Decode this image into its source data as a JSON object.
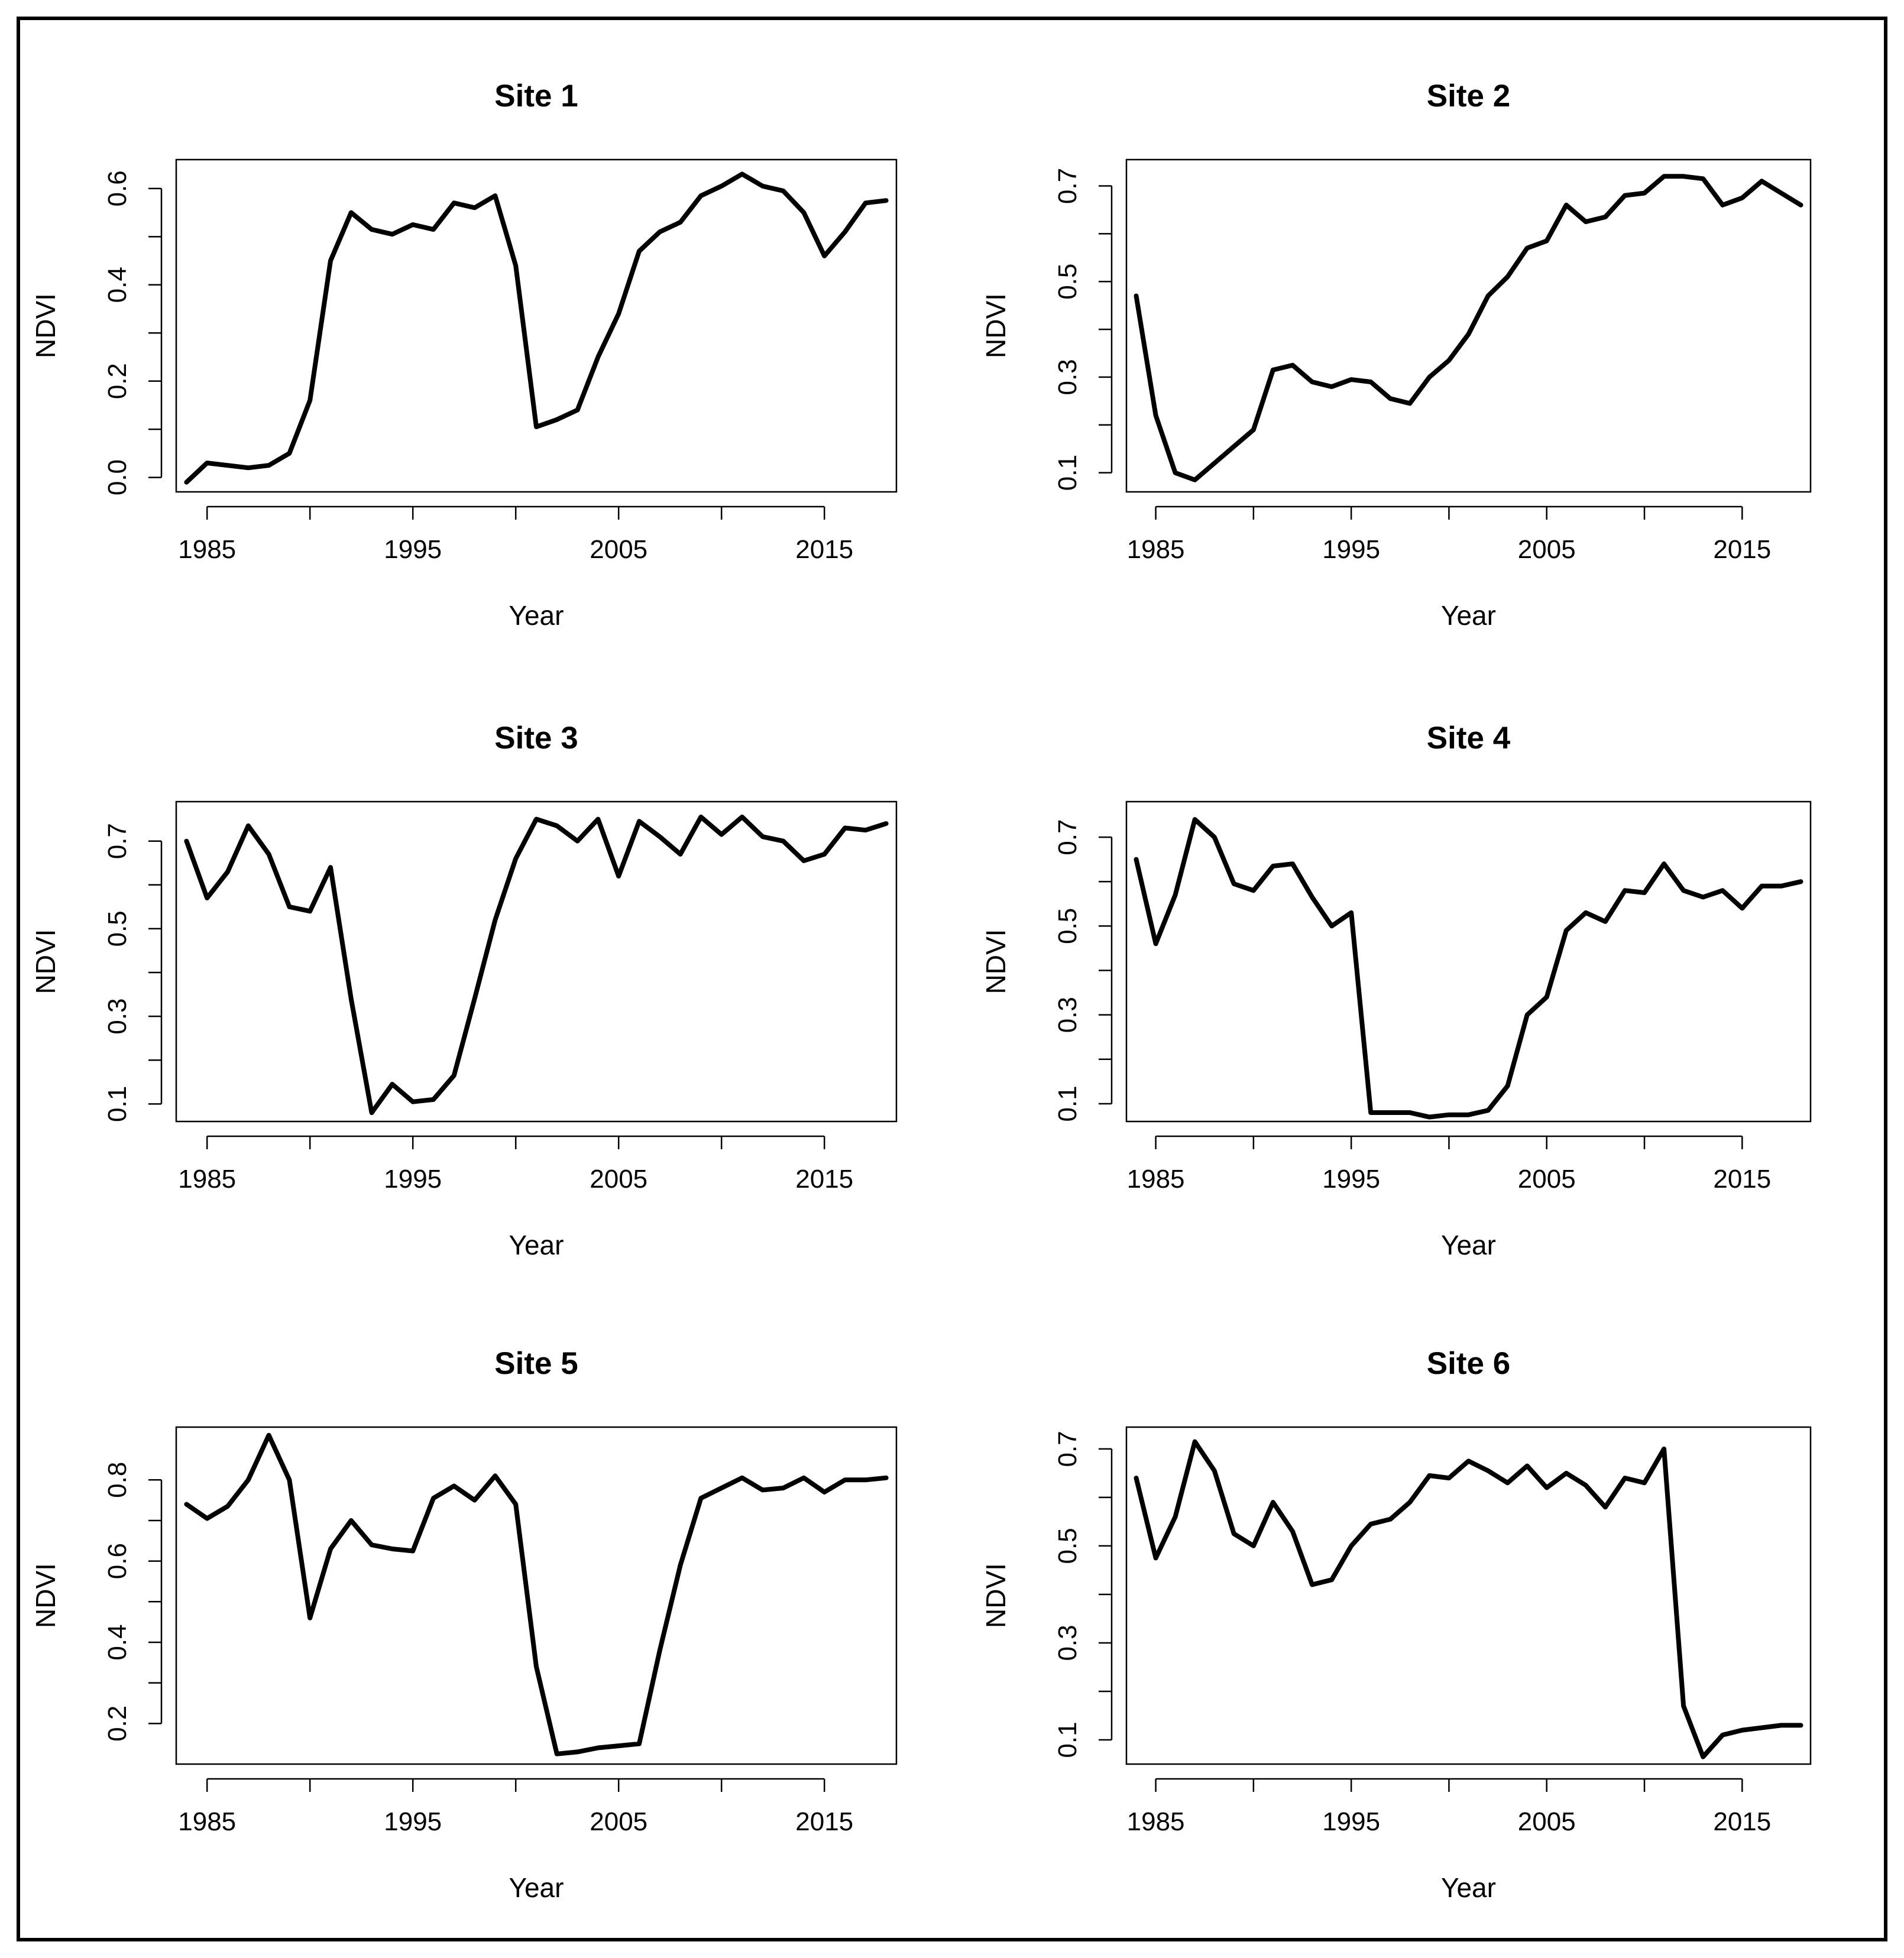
{
  "figure": {
    "line_color": "#000000",
    "background": "#ffffff"
  },
  "chart_data": [
    {
      "type": "line",
      "title": "Site 1",
      "xlabel": "Year",
      "ylabel": "NDVI",
      "xlim": [
        1983.5,
        2018.5
      ],
      "ylim": [
        -0.03,
        0.66
      ],
      "xticks": [
        1985,
        1990,
        1995,
        2000,
        2005,
        2010,
        2015
      ],
      "xtick_labels": [
        "1985",
        "",
        "1995",
        "",
        "2005",
        "",
        "2015"
      ],
      "yticks": [
        0.0,
        0.1,
        0.2,
        0.3,
        0.4,
        0.5,
        0.6
      ],
      "ytick_labels": [
        "0.0",
        "",
        "0.2",
        "",
        "0.4",
        "",
        "0.6"
      ],
      "x": [
        1984,
        1985,
        1986,
        1987,
        1988,
        1989,
        1990,
        1991,
        1992,
        1993,
        1994,
        1995,
        1996,
        1997,
        1998,
        1999,
        2000,
        2001,
        2002,
        2003,
        2004,
        2005,
        2006,
        2007,
        2008,
        2009,
        2010,
        2011,
        2012,
        2013,
        2014,
        2015,
        2016,
        2017,
        2018
      ],
      "values": [
        -0.01,
        0.03,
        0.025,
        0.02,
        0.025,
        0.05,
        0.16,
        0.45,
        0.55,
        0.515,
        0.505,
        0.525,
        0.515,
        0.57,
        0.56,
        0.585,
        0.44,
        0.105,
        0.12,
        0.14,
        0.25,
        0.34,
        0.47,
        0.51,
        0.53,
        0.585,
        0.605,
        0.63,
        0.605,
        0.595,
        0.55,
        0.46,
        0.51,
        0.57,
        0.575
      ]
    },
    {
      "type": "line",
      "title": "Site 2",
      "xlabel": "Year",
      "ylabel": "NDVI",
      "xlim": [
        1983.5,
        2018.5
      ],
      "ylim": [
        0.06,
        0.755
      ],
      "xticks": [
        1985,
        1990,
        1995,
        2000,
        2005,
        2010,
        2015
      ],
      "xtick_labels": [
        "1985",
        "",
        "1995",
        "",
        "2005",
        "",
        "2015"
      ],
      "yticks": [
        0.1,
        0.2,
        0.3,
        0.4,
        0.5,
        0.6,
        0.7
      ],
      "ytick_labels": [
        "0.1",
        "",
        "0.3",
        "",
        "0.5",
        "",
        "0.7"
      ],
      "x": [
        1984,
        1985,
        1986,
        1987,
        1988,
        1989,
        1990,
        1991,
        1992,
        1993,
        1994,
        1995,
        1996,
        1997,
        1998,
        1999,
        2000,
        2001,
        2002,
        2003,
        2004,
        2005,
        2006,
        2007,
        2008,
        2009,
        2010,
        2011,
        2012,
        2013,
        2014,
        2015,
        2016,
        2017,
        2018
      ],
      "values": [
        0.47,
        0.22,
        0.1,
        0.085,
        0.12,
        0.155,
        0.19,
        0.315,
        0.325,
        0.29,
        0.28,
        0.295,
        0.29,
        0.255,
        0.245,
        0.3,
        0.335,
        0.39,
        0.47,
        0.51,
        0.57,
        0.585,
        0.66,
        0.625,
        0.635,
        0.68,
        0.685,
        0.72,
        0.72,
        0.715,
        0.66,
        0.675,
        0.71,
        0.685,
        0.66
      ]
    },
    {
      "type": "line",
      "title": "Site 3",
      "xlabel": "Year",
      "ylabel": "NDVI",
      "xlim": [
        1983.5,
        2018.5
      ],
      "ylim": [
        0.06,
        0.79
      ],
      "xticks": [
        1985,
        1990,
        1995,
        2000,
        2005,
        2010,
        2015
      ],
      "xtick_labels": [
        "1985",
        "",
        "1995",
        "",
        "2005",
        "",
        "2015"
      ],
      "yticks": [
        0.1,
        0.2,
        0.3,
        0.4,
        0.5,
        0.6,
        0.7
      ],
      "ytick_labels": [
        "0.1",
        "",
        "0.3",
        "",
        "0.5",
        "",
        "0.7"
      ],
      "x": [
        1984,
        1985,
        1986,
        1987,
        1988,
        1989,
        1990,
        1991,
        1992,
        1993,
        1994,
        1995,
        1996,
        1997,
        1998,
        1999,
        2000,
        2001,
        2002,
        2003,
        2004,
        2005,
        2006,
        2007,
        2008,
        2009,
        2010,
        2011,
        2012,
        2013,
        2014,
        2015,
        2016,
        2017,
        2018
      ],
      "values": [
        0.7,
        0.57,
        0.63,
        0.735,
        0.67,
        0.55,
        0.54,
        0.64,
        0.34,
        0.08,
        0.145,
        0.105,
        0.11,
        0.165,
        0.34,
        0.52,
        0.66,
        0.75,
        0.735,
        0.7,
        0.75,
        0.62,
        0.745,
        0.71,
        0.67,
        0.755,
        0.715,
        0.755,
        0.71,
        0.7,
        0.655,
        0.67,
        0.73,
        0.725,
        0.74
      ]
    },
    {
      "type": "line",
      "title": "Site 4",
      "xlabel": "Year",
      "ylabel": "NDVI",
      "xlim": [
        1983.5,
        2018.5
      ],
      "ylim": [
        0.06,
        0.78
      ],
      "xticks": [
        1985,
        1990,
        1995,
        2000,
        2005,
        2010,
        2015
      ],
      "xtick_labels": [
        "1985",
        "",
        "1995",
        "",
        "2005",
        "",
        "2015"
      ],
      "yticks": [
        0.1,
        0.2,
        0.3,
        0.4,
        0.5,
        0.6,
        0.7
      ],
      "ytick_labels": [
        "0.1",
        "",
        "0.3",
        "",
        "0.5",
        "",
        "0.7"
      ],
      "x": [
        1984,
        1985,
        1986,
        1987,
        1988,
        1989,
        1990,
        1991,
        1992,
        1993,
        1994,
        1995,
        1996,
        1997,
        1998,
        1999,
        2000,
        2001,
        2002,
        2003,
        2004,
        2005,
        2006,
        2007,
        2008,
        2009,
        2010,
        2011,
        2012,
        2013,
        2014,
        2015,
        2016,
        2017,
        2018
      ],
      "values": [
        0.65,
        0.46,
        0.57,
        0.74,
        0.7,
        0.595,
        0.58,
        0.635,
        0.64,
        0.565,
        0.5,
        0.53,
        0.08,
        0.08,
        0.08,
        0.07,
        0.075,
        0.075,
        0.085,
        0.14,
        0.3,
        0.34,
        0.49,
        0.53,
        0.51,
        0.58,
        0.575,
        0.64,
        0.58,
        0.565,
        0.58,
        0.54,
        0.59,
        0.59,
        0.6
      ]
    },
    {
      "type": "line",
      "title": "Site 5",
      "xlabel": "Year",
      "ylabel": "NDVI",
      "xlim": [
        1983.5,
        2018.5
      ],
      "ylim": [
        0.1,
        0.93
      ],
      "xticks": [
        1985,
        1990,
        1995,
        2000,
        2005,
        2010,
        2015
      ],
      "xtick_labels": [
        "1985",
        "",
        "1995",
        "",
        "2005",
        "",
        "2015"
      ],
      "yticks": [
        0.2,
        0.3,
        0.4,
        0.5,
        0.6,
        0.7,
        0.8
      ],
      "ytick_labels": [
        "0.2",
        "",
        "0.4",
        "",
        "0.6",
        "",
        "0.8"
      ],
      "x": [
        1984,
        1985,
        1986,
        1987,
        1988,
        1989,
        1990,
        1991,
        1992,
        1993,
        1994,
        1995,
        1996,
        1997,
        1998,
        1999,
        2000,
        2001,
        2002,
        2003,
        2004,
        2005,
        2006,
        2007,
        2008,
        2009,
        2010,
        2011,
        2012,
        2013,
        2014,
        2015,
        2016,
        2017,
        2018
      ],
      "values": [
        0.74,
        0.705,
        0.735,
        0.8,
        0.91,
        0.8,
        0.46,
        0.63,
        0.7,
        0.64,
        0.63,
        0.625,
        0.755,
        0.785,
        0.75,
        0.81,
        0.74,
        0.34,
        0.125,
        0.13,
        0.14,
        0.145,
        0.15,
        0.38,
        0.59,
        0.755,
        0.78,
        0.805,
        0.775,
        0.78,
        0.805,
        0.77,
        0.8,
        0.8,
        0.805
      ]
    },
    {
      "type": "line",
      "title": "Site 6",
      "xlabel": "Year",
      "ylabel": "NDVI",
      "xlim": [
        1983.5,
        2018.5
      ],
      "ylim": [
        0.05,
        0.745
      ],
      "xticks": [
        1985,
        1990,
        1995,
        2000,
        2005,
        2010,
        2015
      ],
      "xtick_labels": [
        "1985",
        "",
        "1995",
        "",
        "2005",
        "",
        "2015"
      ],
      "yticks": [
        0.1,
        0.2,
        0.3,
        0.4,
        0.5,
        0.6,
        0.7
      ],
      "ytick_labels": [
        "0.1",
        "",
        "0.3",
        "",
        "0.5",
        "",
        "0.7"
      ],
      "x": [
        1984,
        1985,
        1986,
        1987,
        1988,
        1989,
        1990,
        1991,
        1992,
        1993,
        1994,
        1995,
        1996,
        1997,
        1998,
        1999,
        2000,
        2001,
        2002,
        2003,
        2004,
        2005,
        2006,
        2007,
        2008,
        2009,
        2010,
        2011,
        2012,
        2013,
        2014,
        2015,
        2016,
        2017,
        2018
      ],
      "values": [
        0.64,
        0.475,
        0.56,
        0.715,
        0.655,
        0.525,
        0.5,
        0.59,
        0.53,
        0.42,
        0.43,
        0.5,
        0.545,
        0.555,
        0.59,
        0.645,
        0.64,
        0.675,
        0.655,
        0.63,
        0.665,
        0.62,
        0.65,
        0.625,
        0.58,
        0.64,
        0.63,
        0.7,
        0.17,
        0.065,
        0.11,
        0.12,
        0.125,
        0.13,
        0.13
      ]
    }
  ]
}
